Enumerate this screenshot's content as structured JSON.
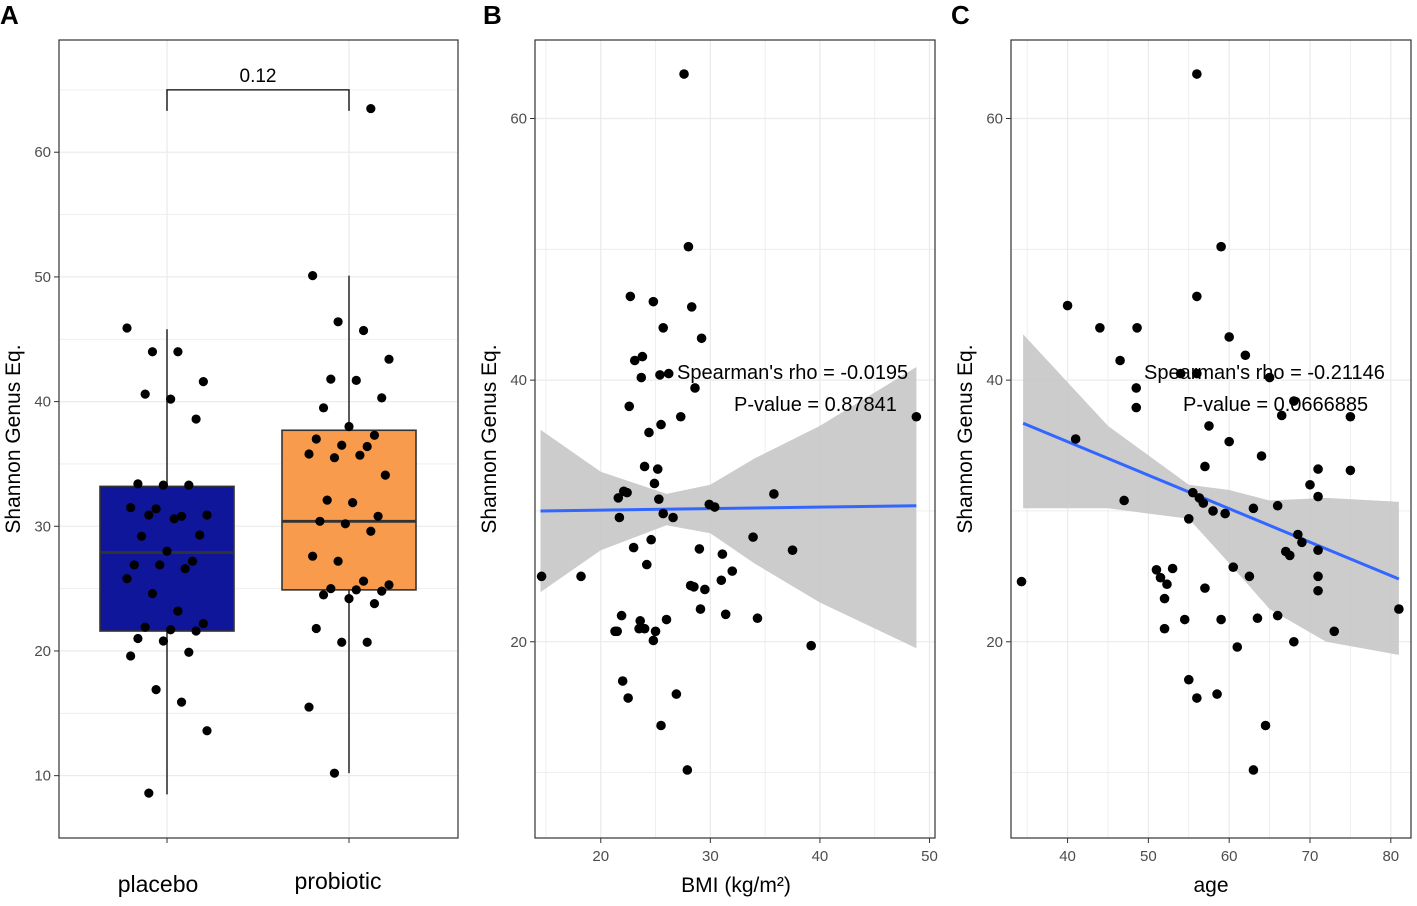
{
  "colors": {
    "placebo_box": "#0f1699",
    "probiotic_box": "#f99b4d",
    "regression_line": "#3366ff",
    "confidence_band": "#c7c7c7",
    "point": "#000000",
    "gridline": "#ebebeb",
    "panel_border": "#333333"
  },
  "chart_data": [
    {
      "panel": "A",
      "type": "box",
      "title": "",
      "xlabel": "",
      "ylabel": "Shannon Genus Eq.",
      "ylim": [
        5,
        69
      ],
      "y_ticks": [
        10,
        20,
        30,
        40,
        50,
        60
      ],
      "categories": [
        "placebo",
        "probiotic"
      ],
      "boxes": [
        {
          "name": "placebo",
          "whisker_low": 8.5,
          "q1": 21.6,
          "median": 27.9,
          "q3": 33.2,
          "whisker_high": 45.8
        },
        {
          "name": "probiotic",
          "whisker_low": 10.2,
          "q1": 24.9,
          "median": 30.4,
          "q3": 37.7,
          "whisker_high": 50.1
        }
      ],
      "points": [
        {
          "group": "placebo",
          "values": [
            45.9,
            44.0,
            44.0,
            41.6,
            40.6,
            40.2,
            38.6,
            33.4,
            33.3,
            33.3,
            31.5,
            31.4,
            30.8,
            30.9,
            30.9,
            30.6,
            29.3,
            29.2,
            28.0,
            27.2,
            26.9,
            26.9,
            26.6,
            25.8,
            24.6,
            23.2,
            22.2,
            21.9,
            21.7,
            21.6,
            21.0,
            20.8,
            19.9,
            19.6,
            16.9,
            15.9,
            13.6,
            8.6
          ]
        },
        {
          "group": "probiotic",
          "values": [
            63.5,
            50.1,
            46.4,
            45.7,
            43.4,
            41.8,
            41.7,
            40.3,
            39.5,
            38.0,
            37.3,
            37.0,
            36.5,
            36.4,
            35.8,
            35.5,
            35.7,
            34.1,
            32.1,
            31.9,
            30.8,
            30.4,
            30.2,
            29.6,
            27.6,
            27.2,
            25.6,
            25.3,
            25.0,
            24.9,
            24.8,
            24.5,
            24.2,
            23.8,
            21.8,
            20.7,
            20.7,
            15.5,
            10.2
          ]
        }
      ],
      "comparison": {
        "label": "0.12",
        "groups": [
          "placebo",
          "probiotic"
        ],
        "y": 65
      }
    },
    {
      "panel": "B",
      "type": "scatter",
      "title": "",
      "xlabel": "BMI (kg/m²)",
      "ylabel": "Shannon Genus Eq.",
      "xlim": [
        14,
        50.5
      ],
      "ylim": [
        5,
        66
      ],
      "x_ticks": [
        20,
        30,
        40,
        50
      ],
      "y_ticks": [
        20,
        40,
        60
      ],
      "annotation": {
        "line1": "Spearman's rho = -0.0195",
        "line2": "P-value = 0.87841"
      },
      "fit": {
        "x": [
          14.5,
          48.8
        ],
        "y": [
          30.0,
          30.4
        ]
      },
      "band": {
        "x": [
          14.5,
          20.0,
          26.0,
          30.0,
          34.0,
          40.0,
          48.8
        ],
        "upper": [
          36.2,
          33.0,
          31.3,
          32.0,
          34.0,
          36.5,
          41.0
        ],
        "lower": [
          23.8,
          27.0,
          28.9,
          28.3,
          26.0,
          23.0,
          19.5
        ]
      },
      "x": [
        14.6,
        18.2,
        21.7,
        21.6,
        22.1,
        22.6,
        23.1,
        23.7,
        23.8,
        24.0,
        24.4,
        24.8,
        25.2,
        25.4,
        25.5,
        25.7,
        26.0,
        27.3,
        28.0,
        28.3,
        28.6,
        29.2,
        29.9,
        21.5,
        22.0,
        22.5,
        22.7,
        23.0,
        23.6,
        24.2,
        24.6,
        24.9,
        25.3,
        25.7,
        26.2,
        26.9,
        27.6,
        28.5,
        29.1,
        29.5,
        31.1,
        31.4,
        32.0,
        33.9,
        34.3,
        35.8,
        37.5,
        39.2,
        48.8,
        21.3,
        21.9,
        22.4,
        23.5,
        24.0,
        24.8,
        25.0,
        25.5,
        26.6,
        27.9,
        28.2,
        29.0,
        30.4,
        31.0
      ],
      "y": [
        25.0,
        25.0,
        29.5,
        31.0,
        31.5,
        38.0,
        41.5,
        40.2,
        41.8,
        33.4,
        36.0,
        46.0,
        33.2,
        40.4,
        36.6,
        44.0,
        21.7,
        37.2,
        50.2,
        45.6,
        39.4,
        43.2,
        30.5,
        20.8,
        17.0,
        15.7,
        46.4,
        27.2,
        21.6,
        25.9,
        27.8,
        32.1,
        30.9,
        29.8,
        40.5,
        16.0,
        63.4,
        24.2,
        22.5,
        24.0,
        26.7,
        22.1,
        25.4,
        28.0,
        21.8,
        31.3,
        27.0,
        19.7,
        37.2,
        20.8,
        22.0,
        31.4,
        21.0,
        21.0,
        20.1,
        20.8,
        13.6,
        29.5,
        10.2,
        24.3,
        27.1,
        30.3,
        24.7
      ]
    },
    {
      "panel": "C",
      "type": "scatter",
      "title": "",
      "xlabel": "age",
      "ylabel": "Shannon Genus Eq.",
      "xlim": [
        33,
        82.5
      ],
      "ylim": [
        5,
        66
      ],
      "x_ticks": [
        40,
        50,
        60,
        70,
        80
      ],
      "y_ticks": [
        20,
        40,
        60
      ],
      "annotation": {
        "line1": "Spearman's rho = -0.21146",
        "line2": "P-value = 0.0666885"
      },
      "fit": {
        "x": [
          34.5,
          81.0
        ],
        "y": [
          36.7,
          24.8
        ]
      },
      "band": {
        "x": [
          34.5,
          45.0,
          55.0,
          60.0,
          65.0,
          72.0,
          81.0
        ],
        "upper": [
          43.5,
          36.5,
          32.0,
          31.6,
          30.8,
          31.0,
          30.7
        ],
        "lower": [
          30.2,
          30.2,
          29.4,
          26.0,
          22.5,
          20.0,
          19.0
        ]
      },
      "x": [
        34.3,
        40.0,
        41.0,
        44.0,
        46.5,
        47.0,
        48.5,
        48.5,
        48.6,
        51.0,
        51.5,
        52.0,
        52.3,
        53.0,
        54.0,
        54.5,
        55.0,
        55.5,
        56.0,
        56.0,
        56.0,
        56.3,
        56.8,
        57.0,
        57.0,
        57.5,
        58.0,
        58.5,
        59.0,
        59.0,
        59.5,
        60.0,
        60.0,
        60.5,
        61.0,
        62.0,
        62.5,
        63.0,
        63.5,
        64.0,
        64.5,
        65.0,
        66.0,
        66.0,
        66.5,
        67.0,
        67.5,
        68.0,
        68.0,
        68.5,
        69.0,
        70.0,
        71.0,
        71.0,
        71.0,
        71.0,
        71.0,
        73.0,
        75.0,
        75.0,
        81.0,
        52.0,
        55.0,
        56.0,
        63.0
      ],
      "y": [
        24.6,
        45.7,
        35.5,
        44.0,
        41.5,
        30.8,
        37.9,
        39.4,
        44.0,
        25.5,
        24.9,
        21.0,
        24.4,
        25.6,
        40.5,
        21.7,
        29.4,
        31.4,
        46.4,
        40.5,
        63.4,
        31.0,
        30.6,
        33.4,
        24.1,
        36.5,
        30.0,
        16.0,
        50.2,
        21.7,
        29.8,
        35.3,
        43.3,
        25.7,
        19.6,
        41.9,
        25.0,
        30.2,
        21.8,
        34.2,
        13.6,
        40.2,
        30.4,
        22.0,
        37.3,
        26.9,
        26.6,
        38.4,
        20.0,
        28.2,
        27.6,
        32.0,
        25.0,
        27.0,
        33.2,
        23.9,
        31.1,
        20.8,
        33.1,
        37.2,
        22.5,
        23.3,
        17.1,
        15.7,
        10.2
      ]
    }
  ]
}
